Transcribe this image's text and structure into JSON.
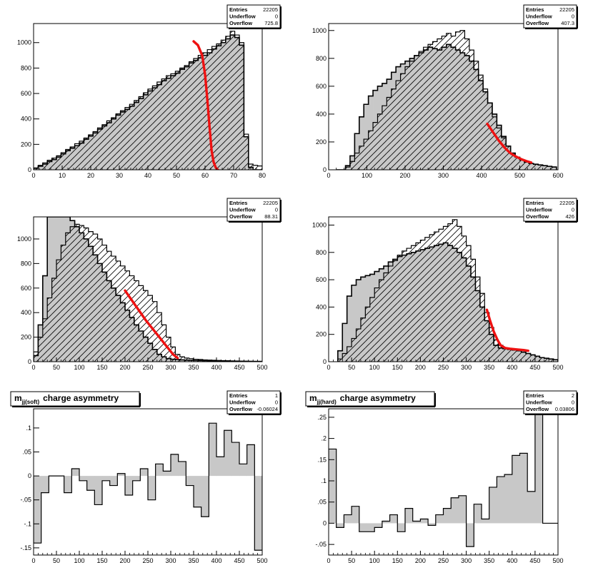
{
  "colors": {
    "fill_gray": "#c8c8c8",
    "fit_red": "#ee1111",
    "frame": "#000000",
    "background": "#ffffff"
  },
  "chart_data": [
    {
      "type": "bar",
      "variant": "step_histogram",
      "title": "",
      "xlim": [
        0,
        80
      ],
      "ylim": [
        0,
        1150
      ],
      "xticks": [
        0,
        10,
        20,
        30,
        40,
        50,
        60,
        70,
        80
      ],
      "yticks": [
        0,
        200,
        400,
        600,
        800,
        1000
      ],
      "stats": [
        [
          "Entries",
          "22205"
        ],
        [
          "Underflow",
          "0"
        ],
        [
          "Overflow",
          "725.8"
        ]
      ],
      "x_start": 0,
      "bin_width": 1.6,
      "series": [
        {
          "name": "filled",
          "values": [
            12,
            28,
            45,
            65,
            80,
            100,
            125,
            150,
            170,
            190,
            210,
            240,
            265,
            290,
            320,
            345,
            370,
            400,
            430,
            455,
            475,
            500,
            530,
            560,
            590,
            620,
            645,
            670,
            700,
            720,
            740,
            760,
            790,
            810,
            840,
            860,
            880,
            900,
            920,
            950,
            975,
            1000,
            1030,
            1060,
            1040,
            980,
            260,
            20,
            0,
            0
          ]
        },
        {
          "name": "outline",
          "values": [
            15,
            35,
            55,
            75,
            92,
            110,
            135,
            160,
            180,
            205,
            225,
            250,
            275,
            300,
            330,
            355,
            385,
            410,
            440,
            465,
            490,
            515,
            545,
            575,
            605,
            635,
            660,
            690,
            715,
            740,
            755,
            775,
            800,
            820,
            850,
            875,
            900,
            920,
            945,
            970,
            990,
            1020,
            1050,
            1090,
            1060,
            1000,
            280,
            45,
            35,
            30
          ]
        }
      ],
      "fit": {
        "x": [
          56,
          57.5,
          59,
          60,
          60.8,
          61.6,
          62.3,
          63,
          63.8,
          64.5
        ],
        "y": [
          1010,
          980,
          900,
          750,
          550,
          330,
          150,
          60,
          15,
          0
        ]
      }
    },
    {
      "type": "bar",
      "variant": "step_histogram",
      "title": "",
      "xlim": [
        0,
        600
      ],
      "ylim": [
        0,
        1050
      ],
      "xticks": [
        0,
        100,
        200,
        300,
        400,
        500,
        600
      ],
      "yticks": [
        0,
        200,
        400,
        600,
        800,
        1000
      ],
      "stats": [
        [
          "Entries",
          "22205"
        ],
        [
          "Underflow",
          "0"
        ],
        [
          "Overflow",
          "407.3"
        ]
      ],
      "x_start": 20,
      "bin_width": 12,
      "series": [
        {
          "name": "filled",
          "values": [
            0,
            0,
            30,
            100,
            260,
            380,
            470,
            530,
            570,
            600,
            620,
            650,
            700,
            740,
            760,
            780,
            800,
            820,
            840,
            860,
            880,
            870,
            860,
            880,
            900,
            880,
            860,
            840,
            820,
            780,
            720,
            640,
            560,
            480,
            400,
            320,
            240,
            170,
            120,
            90,
            70,
            55,
            45,
            40,
            35,
            30,
            25,
            20
          ]
        },
        {
          "name": "outline",
          "values": [
            0,
            0,
            20,
            60,
            120,
            170,
            220,
            280,
            340,
            400,
            460,
            520,
            580,
            640,
            690,
            740,
            780,
            820,
            850,
            880,
            900,
            920,
            940,
            960,
            980,
            960,
            990,
            1000,
            940,
            860,
            780,
            680,
            580,
            480,
            380,
            300,
            230,
            170,
            120,
            90,
            70,
            55,
            45,
            40,
            35,
            30,
            25,
            20
          ]
        }
      ],
      "fit": {
        "x": [
          415,
          430,
          445,
          460,
          475,
          490,
          505,
          520,
          530
        ],
        "y": [
          330,
          270,
          210,
          160,
          120,
          95,
          75,
          60,
          52
        ]
      }
    },
    {
      "type": "bar",
      "variant": "step_histogram",
      "title": "",
      "xlim": [
        0,
        500
      ],
      "ylim": [
        0,
        1180
      ],
      "xticks": [
        0,
        50,
        100,
        150,
        200,
        250,
        300,
        350,
        400,
        450,
        500
      ],
      "yticks": [
        0,
        200,
        400,
        600,
        800,
        1000
      ],
      "stats": [
        [
          "Entries",
          "22205"
        ],
        [
          "Underflow",
          "0"
        ],
        [
          "Overflow",
          "88.31"
        ]
      ],
      "x_start": 0,
      "bin_width": 10,
      "series": [
        {
          "name": "filled",
          "values": [
            50,
            300,
            700,
            1180,
            1180,
            1180,
            1180,
            1180,
            1150,
            1100,
            1050,
            1000,
            940,
            870,
            800,
            730,
            660,
            600,
            540,
            480,
            420,
            360,
            300,
            250,
            200,
            150,
            100,
            60,
            40,
            25,
            20,
            18,
            15,
            13,
            12,
            10,
            9,
            8,
            7,
            6,
            5,
            5,
            4,
            4,
            3,
            3,
            3,
            2,
            2,
            2
          ]
        },
        {
          "name": "outline",
          "values": [
            80,
            200,
            350,
            520,
            680,
            830,
            950,
            1050,
            1100,
            1120,
            1110,
            1090,
            1060,
            1040,
            1000,
            950,
            900,
            860,
            820,
            780,
            740,
            700,
            660,
            620,
            580,
            540,
            490,
            400,
            300,
            200,
            120,
            60,
            40,
            30,
            25,
            20,
            18,
            15,
            13,
            12,
            10,
            9,
            8,
            7,
            6,
            5,
            4,
            4,
            3,
            3
          ]
        }
      ],
      "fit": {
        "x": [
          200,
          215,
          230,
          245,
          260,
          275,
          290,
          305,
          315
        ],
        "y": [
          580,
          500,
          420,
          340,
          270,
          200,
          130,
          60,
          30
        ]
      }
    },
    {
      "type": "bar",
      "variant": "step_histogram",
      "title": "",
      "xlim": [
        0,
        500
      ],
      "ylim": [
        0,
        1060
      ],
      "xticks": [
        0,
        50,
        100,
        150,
        200,
        250,
        300,
        350,
        400,
        450,
        500
      ],
      "yticks": [
        0,
        200,
        400,
        600,
        800,
        1000
      ],
      "stats": [
        [
          "Entries",
          "22205"
        ],
        [
          "Underflow",
          "0"
        ],
        [
          "Overflow",
          "426"
        ]
      ],
      "x_start": 20,
      "bin_width": 10,
      "series": [
        {
          "name": "filled",
          "values": [
            80,
            280,
            480,
            560,
            600,
            620,
            630,
            640,
            660,
            680,
            700,
            730,
            750,
            770,
            780,
            790,
            800,
            810,
            820,
            830,
            840,
            850,
            860,
            870,
            850,
            830,
            800,
            760,
            700,
            620,
            520,
            400,
            300,
            200,
            120,
            100,
            95,
            90,
            85,
            80,
            70,
            60,
            50,
            40,
            30,
            25,
            20,
            15
          ]
        },
        {
          "name": "outline",
          "values": [
            20,
            60,
            110,
            170,
            240,
            320,
            400,
            470,
            540,
            600,
            650,
            700,
            740,
            780,
            810,
            830,
            850,
            870,
            890,
            910,
            930,
            950,
            970,
            990,
            1010,
            1040,
            990,
            920,
            850,
            750,
            620,
            500,
            360,
            250,
            160,
            120,
            100,
            90,
            85,
            80,
            70,
            60,
            50,
            40,
            30,
            25,
            20,
            15
          ]
        }
      ],
      "fit": {
        "x": [
          345,
          352,
          360,
          368,
          375,
          385,
          395,
          410,
          425,
          435
        ],
        "y": [
          380,
          300,
          220,
          160,
          120,
          100,
          95,
          90,
          85,
          80
        ]
      }
    },
    {
      "type": "bar",
      "variant": "asymmetry_histogram",
      "title": "charge asymmetry",
      "title_math": {
        "base": "m",
        "sub": "jj(soft)"
      },
      "xlim": [
        0,
        500
      ],
      "ylim": [
        -0.165,
        0.14
      ],
      "xticks": [
        0,
        50,
        100,
        150,
        200,
        250,
        300,
        350,
        400,
        450,
        500
      ],
      "yticks": [
        -0.15,
        -0.1,
        -0.05,
        0,
        0.05,
        0.1
      ],
      "stats": [
        [
          "Entries",
          "1"
        ],
        [
          "Underflow",
          "0"
        ],
        [
          "Overflow",
          "-0.06024"
        ]
      ],
      "x_start": 0,
      "bin_width": 16.6667,
      "series": [
        {
          "name": "asymmetry",
          "values": [
            -0.14,
            -0.035,
            0.0,
            0.0,
            -0.035,
            0.015,
            -0.01,
            -0.03,
            -0.06,
            -0.01,
            -0.02,
            0.005,
            -0.04,
            -0.01,
            0.015,
            -0.05,
            0.025,
            0.01,
            0.045,
            0.03,
            -0.02,
            -0.065,
            -0.085,
            0.11,
            0.04,
            0.095,
            0.07,
            0.025,
            0.065,
            -0.155
          ]
        }
      ]
    },
    {
      "type": "bar",
      "variant": "asymmetry_histogram",
      "title": "charge asymmetry",
      "title_math": {
        "base": "m",
        "sub": "jj(hard)"
      },
      "xlim": [
        0,
        500
      ],
      "ylim": [
        -0.075,
        0.27
      ],
      "xticks": [
        0,
        50,
        100,
        150,
        200,
        250,
        300,
        350,
        400,
        450,
        500
      ],
      "yticks": [
        -0.05,
        0,
        0.05,
        0.1,
        0.15,
        0.2,
        0.25
      ],
      "stats": [
        [
          "Entries",
          "2"
        ],
        [
          "Underflow",
          "0"
        ],
        [
          "Overflow",
          "0.03806"
        ]
      ],
      "x_start": 0,
      "bin_width": 16.6667,
      "series": [
        {
          "name": "asymmetry",
          "values": [
            0.175,
            -0.01,
            0.02,
            0.04,
            -0.02,
            -0.02,
            -0.01,
            0.005,
            0.02,
            -0.02,
            0.035,
            0.005,
            0.01,
            -0.005,
            0.02,
            0.035,
            0.06,
            0.065,
            -0.055,
            0.045,
            0.01,
            0.085,
            0.11,
            0.115,
            0.16,
            0.165,
            0.075,
            0.26,
            0.0,
            0.0
          ]
        }
      ]
    }
  ]
}
